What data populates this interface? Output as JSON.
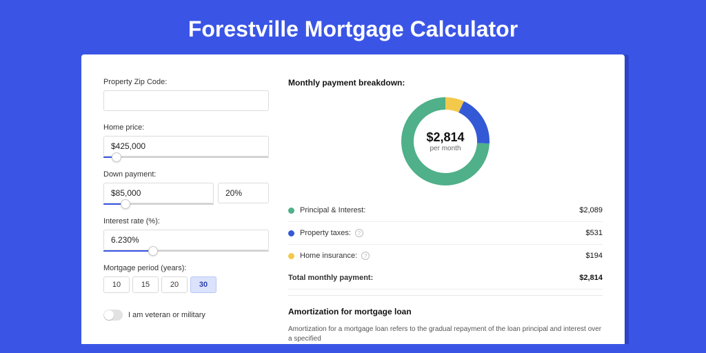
{
  "page": {
    "title": "Forestville Mortgage Calculator",
    "background_color": "#3a55e6",
    "card_shadow_color": "#2d44c7",
    "card_background": "#ffffff"
  },
  "form": {
    "zip": {
      "label": "Property Zip Code:",
      "value": ""
    },
    "home_price": {
      "label": "Home price:",
      "value": "$425,000",
      "slider_pct": 8
    },
    "down_payment": {
      "label": "Down payment:",
      "amount": "$85,000",
      "pct": "20%",
      "slider_pct": 20
    },
    "interest_rate": {
      "label": "Interest rate (%):",
      "value": "6.230%",
      "slider_pct": 30
    },
    "period": {
      "label": "Mortgage period (years):",
      "options": [
        "10",
        "15",
        "20",
        "30"
      ],
      "selected_index": 3
    },
    "veteran": {
      "label": "I am veteran or military",
      "on": false
    }
  },
  "breakdown": {
    "title": "Monthly payment breakdown:",
    "center_amount": "$2,814",
    "center_sub": "per month",
    "donut": {
      "size": 128,
      "stroke_width": 18,
      "slices": [
        {
          "key": "principal_interest",
          "label": "Principal & Interest:",
          "value": "$2,089",
          "fraction": 0.742,
          "color": "#4fb089",
          "has_info": false
        },
        {
          "key": "property_taxes",
          "label": "Property taxes:",
          "value": "$531",
          "fraction": 0.189,
          "color": "#3459d6",
          "has_info": true
        },
        {
          "key": "home_insurance",
          "label": "Home insurance:",
          "value": "$194",
          "fraction": 0.069,
          "color": "#f3c94b",
          "has_info": true
        }
      ]
    },
    "total": {
      "label": "Total monthly payment:",
      "value": "$2,814"
    }
  },
  "amortization": {
    "title": "Amortization for mortgage loan",
    "text": "Amortization for a mortgage loan refers to the gradual repayment of the loan principal and interest over a specified"
  }
}
